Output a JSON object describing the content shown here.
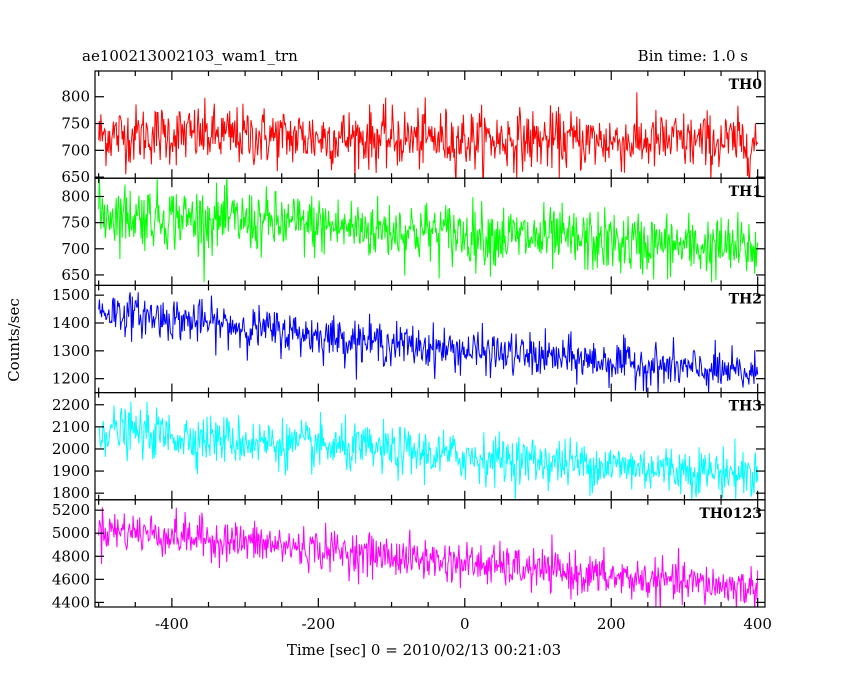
{
  "title_left": "ae100213002103_wam1_trn",
  "title_right": "Bin time: 1.0 s",
  "xlabel": "Time [sec] 0 = 2010/02/13 00:21:03",
  "ylabel": "Counts/sec",
  "chart_data": {
    "type": "line",
    "title": "ae100213002103_wam1_trn",
    "subtitle": "Bin time: 1.0 s",
    "xlabel": "Time [sec] 0 = 2010/02/13 00:21:03",
    "ylabel": "Counts/sec",
    "xlim": [
      -505,
      410
    ],
    "x_ticks": [
      -400,
      -200,
      0,
      200,
      400
    ],
    "x_start": -500,
    "x_end": 400,
    "bin_time": 1.0,
    "grid": false,
    "panels": [
      {
        "name": "TH0",
        "color": "#ff0000",
        "ylim": [
          648,
          848
        ],
        "y_ticks": [
          650,
          700,
          750,
          800
        ],
        "trend_start": 725,
        "trend_end": 715,
        "noise": 28,
        "trend_anchor_values": [
          728,
          730,
          726,
          724,
          722,
          720,
          719,
          717,
          716,
          714
        ]
      },
      {
        "name": "TH1",
        "color": "#00ff00",
        "ylim": [
          630,
          835
        ],
        "y_ticks": [
          650,
          700,
          750,
          800
        ],
        "trend_start": 765,
        "trend_end": 700,
        "noise": 30,
        "trend_anchor_values": [
          768,
          760,
          752,
          744,
          736,
          728,
          720,
          712,
          705,
          700
        ]
      },
      {
        "name": "TH2",
        "color": "#0000ff",
        "ylim": [
          1150,
          1535
        ],
        "y_ticks": [
          1200,
          1300,
          1400,
          1500
        ],
        "trend_start": 1440,
        "trend_end": 1215,
        "noise": 38,
        "trend_anchor_values": [
          1445,
          1415,
          1385,
          1355,
          1325,
          1300,
          1280,
          1260,
          1235,
          1215
        ]
      },
      {
        "name": "TH3",
        "color": "#00ffff",
        "ylim": [
          1770,
          2255
        ],
        "y_ticks": [
          1800,
          1900,
          2000,
          2100,
          2200
        ],
        "trend_start": 2085,
        "trend_end": 1885,
        "noise": 55,
        "trend_anchor_values": [
          2090,
          2060,
          2035,
          2010,
          1990,
          1965,
          1945,
          1925,
          1905,
          1885
        ]
      },
      {
        "name": "TH0123",
        "color": "#ff00ff",
        "ylim": [
          4360,
          5290
        ],
        "y_ticks": [
          4400,
          4600,
          4800,
          5000,
          5200
        ],
        "trend_start": 5030,
        "trend_end": 4520,
        "noise": 90,
        "trend_anchor_values": [
          5040,
          4980,
          4920,
          4860,
          4800,
          4740,
          4680,
          4620,
          4570,
          4520
        ]
      }
    ]
  }
}
